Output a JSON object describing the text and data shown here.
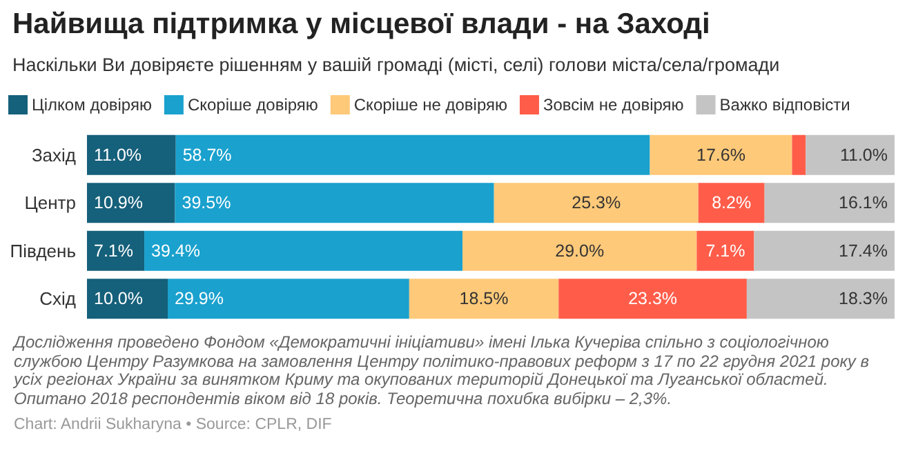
{
  "chart_data": {
    "type": "bar",
    "orientation": "horizontal",
    "stacked": true,
    "title": "Найвища підтримка у місцевої влади - на Заході",
    "subtitle": "Наскільки Ви довіряєте рішенням у вашій громаді (місті, селі) голови міста/села/громади",
    "categories": [
      "Захід",
      "Центр",
      "Південь",
      "Схід"
    ],
    "xlim": [
      0,
      100
    ],
    "tick_labels": "y",
    "grid": false,
    "legend": "top left",
    "series": [
      {
        "name": "Цілком довіряю",
        "color": "#15607a",
        "values": [
          11.0,
          10.9,
          7.1,
          10.0
        ],
        "value_labels": [
          "11.0%",
          "10.9%",
          "7.1%",
          "10.0%"
        ]
      },
      {
        "name": "Скоріше довіряю",
        "color": "#1aa1ce",
        "values": [
          58.7,
          39.5,
          39.4,
          29.9
        ],
        "value_labels": [
          "58.7%",
          "39.5%",
          "39.4%",
          "29.9%"
        ]
      },
      {
        "name": "Скоріше не довіряю",
        "color": "#fec979",
        "values": [
          17.6,
          25.3,
          29.0,
          18.5
        ],
        "value_labels": [
          "17.6%",
          "25.3%",
          "29.0%",
          "18.5%"
        ]
      },
      {
        "name": "Зовсім не довіряю",
        "color": "#ff5d4a",
        "values": [
          1.7,
          8.2,
          7.1,
          23.3
        ],
        "value_labels": [
          null,
          "8.2%",
          "7.1%",
          "23.3%"
        ]
      },
      {
        "name": "Важко відповісти",
        "color": "#c4c4c4",
        "values": [
          11.0,
          16.1,
          17.4,
          18.3
        ],
        "value_labels": [
          "11.0%",
          "16.1%",
          "17.4%",
          "18.3%"
        ]
      }
    ],
    "annotations": [
      "Дослідження проведено Фондом «Демократичні ініціативи» імені Ілька Кучеріва спільно з соціологічною службою Центру Разумкова на замовлення Центру політико-правових реформ з 17 по 22 грудня 2021 року в усіх регіонах України за винятком Криму та окупованих територій Донецької та Луганської областей. Опитано 2018 респондентів віком від 18 років. Теоретична похибка вибірки – 2,3%.",
      "Chart: Andrii Sukharyna • Source: CPLR, DIF"
    ]
  }
}
